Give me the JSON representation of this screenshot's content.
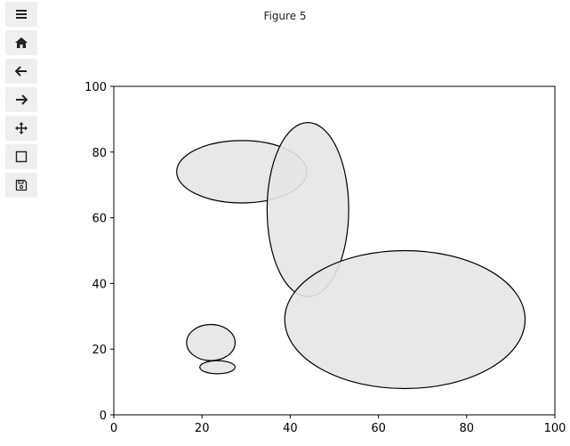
{
  "window": {
    "title": "Figure 5"
  },
  "toolbar": {
    "items": [
      {
        "name": "menu",
        "icon": "menu-icon"
      },
      {
        "name": "home",
        "icon": "home-icon"
      },
      {
        "name": "back",
        "icon": "back-arrow-icon"
      },
      {
        "name": "forward",
        "icon": "forward-arrow-icon"
      },
      {
        "name": "pan",
        "icon": "move-icon"
      },
      {
        "name": "zoom",
        "icon": "zoom-rect-icon"
      },
      {
        "name": "save",
        "icon": "save-icon"
      }
    ]
  },
  "chart_data": {
    "type": "scatter",
    "title": "",
    "xlabel": "",
    "ylabel": "",
    "xlim": [
      0,
      100
    ],
    "ylim": [
      0,
      100
    ],
    "xticks": [
      "0",
      "20",
      "40",
      "60",
      "80",
      "100"
    ],
    "yticks": [
      "0",
      "20",
      "40",
      "60",
      "80",
      "100"
    ],
    "grid": false,
    "ellipses": [
      {
        "cx": 29,
        "cy": 74,
        "width": 29.5,
        "height": 19,
        "fill": "#e6e6e6",
        "edge": "#000000",
        "alpha": 0.9
      },
      {
        "cx": 44,
        "cy": 62.5,
        "width": 18.5,
        "height": 53,
        "fill": "#e6e6e6",
        "edge": "#000000",
        "alpha": 0.9
      },
      {
        "cx": 66,
        "cy": 29,
        "width": 54.5,
        "height": 42,
        "fill": "#e6e6e6",
        "edge": "#000000",
        "alpha": 0.9
      },
      {
        "cx": 22,
        "cy": 22,
        "width": 11,
        "height": 11,
        "fill": "#e6e6e6",
        "edge": "#000000",
        "alpha": 0.9
      },
      {
        "cx": 23.5,
        "cy": 14.5,
        "width": 8,
        "height": 4,
        "fill": "#e6e6e6",
        "edge": "#000000",
        "alpha": 0.9
      }
    ]
  }
}
